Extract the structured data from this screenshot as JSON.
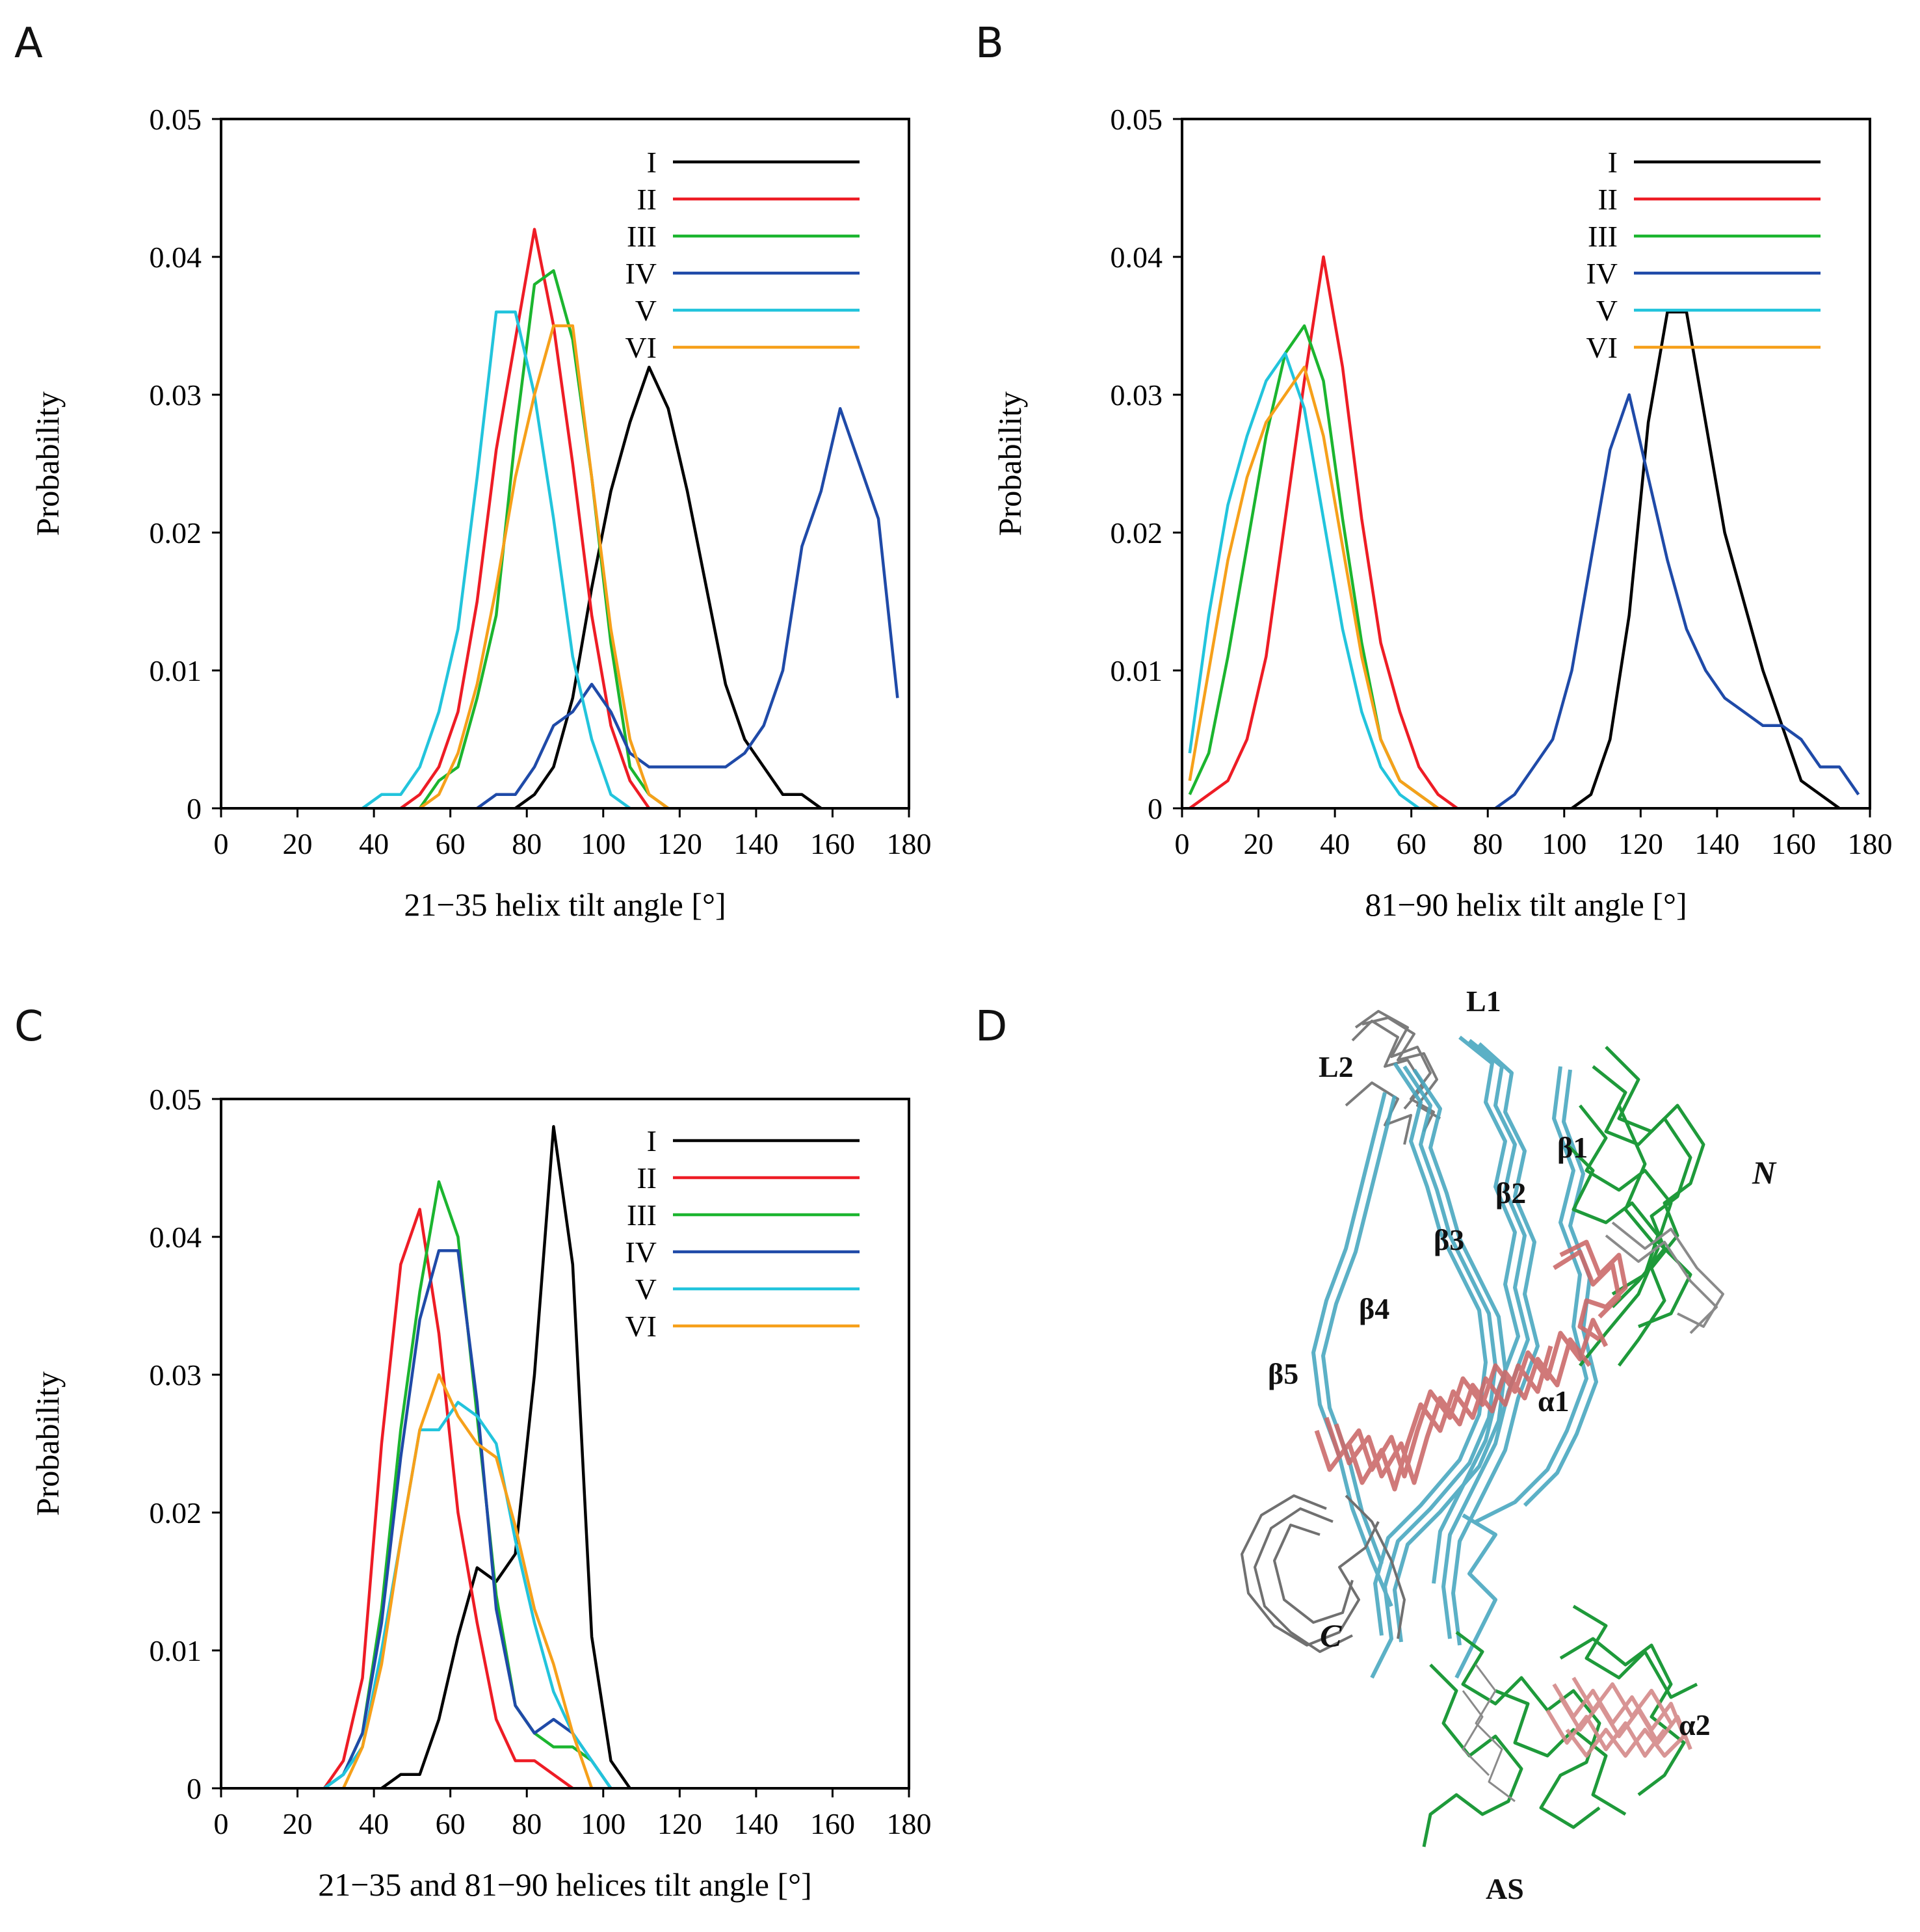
{
  "panels": [
    {
      "letter": "A"
    },
    {
      "letter": "B"
    },
    {
      "letter": "C"
    },
    {
      "letter": "D"
    }
  ],
  "series_colors": {
    "I": "#000000",
    "II": "#ee1c25",
    "III": "#1bb52f",
    "IV": "#1f4aa8",
    "V": "#22c4dc",
    "VI": "#f6a01a"
  },
  "chart_data": [
    {
      "panel": "A",
      "type": "line",
      "xlabel": "21−35 helix tilt angle [°]",
      "ylabel": "Probability",
      "xlim": [
        0,
        180
      ],
      "ylim": [
        0,
        0.05
      ],
      "xticks": [
        "0",
        "20",
        "40",
        "60",
        "80",
        "100",
        "120",
        "140",
        "160",
        "180"
      ],
      "yticks": [
        "0",
        "0.01",
        "0.02",
        "0.03",
        "0.04",
        "0.05"
      ],
      "legend": [
        "I",
        "II",
        "III",
        "IV",
        "V",
        "VI"
      ],
      "series": [
        {
          "name": "I",
          "x": [
            77,
            82,
            87,
            92,
            97,
            102,
            107,
            112,
            117,
            122,
            127,
            132,
            137,
            142,
            147,
            152,
            157
          ],
          "y": [
            0,
            0.001,
            0.003,
            0.008,
            0.016,
            0.023,
            0.028,
            0.032,
            0.029,
            0.023,
            0.016,
            0.009,
            0.005,
            0.003,
            0.001,
            0.001,
            0
          ]
        },
        {
          "name": "II",
          "x": [
            47,
            52,
            57,
            62,
            67,
            72,
            77,
            82,
            87,
            92,
            97,
            102,
            107,
            112
          ],
          "y": [
            0,
            0.001,
            0.003,
            0.007,
            0.015,
            0.026,
            0.034,
            0.042,
            0.035,
            0.025,
            0.014,
            0.006,
            0.002,
            0
          ]
        },
        {
          "name": "III",
          "x": [
            52,
            57,
            62,
            67,
            72,
            77,
            82,
            87,
            92,
            97,
            102,
            107,
            112,
            117
          ],
          "y": [
            0,
            0.002,
            0.003,
            0.008,
            0.014,
            0.027,
            0.038,
            0.039,
            0.034,
            0.024,
            0.012,
            0.003,
            0.001,
            0
          ]
        },
        {
          "name": "IV",
          "x": [
            67,
            72,
            77,
            82,
            87,
            92,
            97,
            102,
            107,
            112,
            117,
            122,
            127,
            132,
            137,
            142,
            147,
            152,
            157,
            162,
            167,
            172,
            177
          ],
          "y": [
            0,
            0.001,
            0.001,
            0.003,
            0.006,
            0.007,
            0.009,
            0.007,
            0.004,
            0.003,
            0.003,
            0.003,
            0.003,
            0.003,
            0.004,
            0.006,
            0.01,
            0.019,
            0.023,
            0.029,
            0.025,
            0.021,
            0.008
          ]
        },
        {
          "name": "V",
          "x": [
            37,
            42,
            47,
            52,
            57,
            62,
            67,
            72,
            77,
            82,
            87,
            92,
            97,
            102,
            107
          ],
          "y": [
            0,
            0.001,
            0.001,
            0.003,
            0.007,
            0.013,
            0.024,
            0.036,
            0.036,
            0.03,
            0.021,
            0.011,
            0.005,
            0.001,
            0
          ]
        },
        {
          "name": "VI",
          "x": [
            52,
            57,
            62,
            67,
            72,
            77,
            82,
            87,
            92,
            97,
            102,
            107,
            112,
            117
          ],
          "y": [
            0,
            0.001,
            0.004,
            0.009,
            0.016,
            0.024,
            0.03,
            0.035,
            0.035,
            0.024,
            0.013,
            0.005,
            0.001,
            0
          ]
        }
      ]
    },
    {
      "panel": "B",
      "type": "line",
      "xlabel": "81−90 helix tilt angle [°]",
      "ylabel": "Probability",
      "xlim": [
        0,
        180
      ],
      "ylim": [
        0,
        0.05
      ],
      "xticks": [
        "0",
        "20",
        "40",
        "60",
        "80",
        "100",
        "120",
        "140",
        "160",
        "180"
      ],
      "yticks": [
        "0",
        "0.01",
        "0.02",
        "0.03",
        "0.04",
        "0.05"
      ],
      "legend": [
        "I",
        "II",
        "III",
        "IV",
        "V",
        "VI"
      ],
      "series": [
        {
          "name": "I",
          "x": [
            102,
            107,
            112,
            117,
            122,
            127,
            132,
            137,
            142,
            147,
            152,
            157,
            162,
            167,
            172
          ],
          "y": [
            0,
            0.001,
            0.005,
            0.014,
            0.028,
            0.036,
            0.036,
            0.028,
            0.02,
            0.015,
            0.01,
            0.006,
            0.002,
            0.001,
            0
          ]
        },
        {
          "name": "II",
          "x": [
            2,
            7,
            12,
            17,
            22,
            27,
            32,
            37,
            42,
            47,
            52,
            57,
            62,
            67,
            72
          ],
          "y": [
            0,
            0.001,
            0.002,
            0.005,
            0.011,
            0.021,
            0.031,
            0.04,
            0.032,
            0.021,
            0.012,
            0.007,
            0.003,
            0.001,
            0
          ]
        },
        {
          "name": "III",
          "x": [
            2,
            7,
            12,
            17,
            22,
            27,
            32,
            37,
            42,
            47,
            52,
            57,
            62,
            67
          ],
          "y": [
            0.001,
            0.004,
            0.011,
            0.019,
            0.027,
            0.033,
            0.035,
            0.031,
            0.021,
            0.012,
            0.005,
            0.002,
            0.001,
            0
          ]
        },
        {
          "name": "IV",
          "x": [
            82,
            87,
            92,
            97,
            102,
            107,
            112,
            117,
            122,
            127,
            132,
            137,
            142,
            147,
            152,
            157,
            162,
            167,
            172,
            177
          ],
          "y": [
            0,
            0.001,
            0.003,
            0.005,
            0.01,
            0.018,
            0.026,
            0.03,
            0.024,
            0.018,
            0.013,
            0.01,
            0.008,
            0.007,
            0.006,
            0.006,
            0.005,
            0.003,
            0.003,
            0.001
          ]
        },
        {
          "name": "V",
          "x": [
            2,
            7,
            12,
            17,
            22,
            27,
            32,
            37,
            42,
            47,
            52,
            57,
            62,
            67
          ],
          "y": [
            0.004,
            0.014,
            0.022,
            0.027,
            0.031,
            0.033,
            0.029,
            0.021,
            0.013,
            0.007,
            0.003,
            0.001,
            0,
            0
          ]
        },
        {
          "name": "VI",
          "x": [
            2,
            7,
            12,
            17,
            22,
            27,
            32,
            37,
            42,
            47,
            52,
            57,
            62,
            67
          ],
          "y": [
            0.002,
            0.01,
            0.018,
            0.024,
            0.028,
            0.03,
            0.032,
            0.027,
            0.019,
            0.011,
            0.005,
            0.002,
            0.001,
            0
          ]
        }
      ]
    },
    {
      "panel": "C",
      "type": "line",
      "xlabel": "21−35 and 81−90 helices tilt angle [°]",
      "ylabel": "Probability",
      "xlim": [
        0,
        180
      ],
      "ylim": [
        0,
        0.05
      ],
      "xticks": [
        "0",
        "20",
        "40",
        "60",
        "80",
        "100",
        "120",
        "140",
        "160",
        "180"
      ],
      "yticks": [
        "0",
        "0.01",
        "0.02",
        "0.03",
        "0.04",
        "0.05"
      ],
      "legend": [
        "I",
        "II",
        "III",
        "IV",
        "V",
        "VI"
      ],
      "series": [
        {
          "name": "I",
          "x": [
            42,
            47,
            52,
            57,
            62,
            67,
            72,
            77,
            82,
            87,
            92,
            97,
            102,
            107
          ],
          "y": [
            0,
            0.001,
            0.001,
            0.005,
            0.011,
            0.016,
            0.015,
            0.017,
            0.03,
            0.048,
            0.038,
            0.011,
            0.002,
            0
          ]
        },
        {
          "name": "II",
          "x": [
            27,
            32,
            37,
            42,
            47,
            52,
            57,
            62,
            67,
            72,
            77,
            82,
            87,
            92
          ],
          "y": [
            0,
            0.002,
            0.008,
            0.025,
            0.038,
            0.042,
            0.033,
            0.02,
            0.012,
            0.005,
            0.002,
            0.002,
            0.001,
            0
          ]
        },
        {
          "name": "III",
          "x": [
            27,
            32,
            37,
            42,
            47,
            52,
            57,
            62,
            67,
            72,
            77,
            82,
            87,
            92,
            97,
            102
          ],
          "y": [
            0,
            0.001,
            0.004,
            0.013,
            0.026,
            0.036,
            0.044,
            0.04,
            0.027,
            0.014,
            0.006,
            0.004,
            0.003,
            0.003,
            0.002,
            0
          ]
        },
        {
          "name": "IV",
          "x": [
            27,
            32,
            37,
            42,
            47,
            52,
            57,
            62,
            67,
            72,
            77,
            82,
            87,
            92,
            97,
            102
          ],
          "y": [
            0,
            0.001,
            0.004,
            0.012,
            0.024,
            0.034,
            0.039,
            0.039,
            0.028,
            0.013,
            0.006,
            0.004,
            0.005,
            0.004,
            0.002,
            0
          ]
        },
        {
          "name": "V",
          "x": [
            27,
            32,
            37,
            42,
            47,
            52,
            57,
            62,
            67,
            72,
            77,
            82,
            87,
            92,
            97,
            102
          ],
          "y": [
            0,
            0.001,
            0.003,
            0.01,
            0.018,
            0.026,
            0.026,
            0.028,
            0.027,
            0.025,
            0.018,
            0.012,
            0.007,
            0.004,
            0.002,
            0
          ]
        },
        {
          "name": "VI",
          "x": [
            32,
            37,
            42,
            47,
            52,
            57,
            62,
            67,
            72,
            77,
            82,
            87,
            92,
            97
          ],
          "y": [
            0,
            0.003,
            0.009,
            0.018,
            0.026,
            0.03,
            0.027,
            0.025,
            0.024,
            0.019,
            0.013,
            0.009,
            0.004,
            0
          ]
        }
      ]
    }
  ],
  "structure": {
    "labels": [
      "L1",
      "L2",
      "β1",
      "β2",
      "β3",
      "β4",
      "β5",
      "α1",
      "α2",
      "N",
      "C",
      "AS"
    ]
  }
}
